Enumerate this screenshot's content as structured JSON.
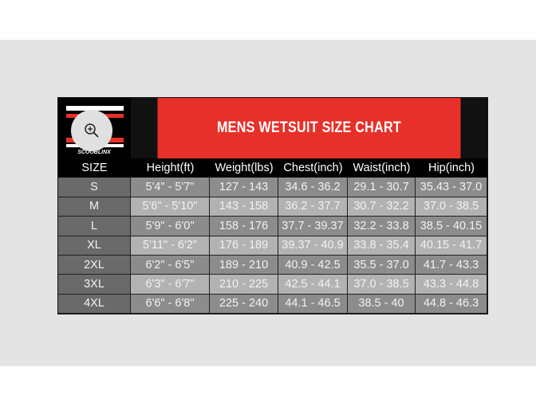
{
  "title": "MENS WETSUIT SIZE CHART",
  "logo_text": "SCOOBLINX",
  "colors": {
    "header_red": "#e8302a",
    "size_col": "#6a6a6a",
    "row_dark": "#8c8c8c",
    "row_light": "#b2b2b2"
  },
  "columns": [
    "SIZE",
    "Height(ft)",
    "Weight(lbs)",
    "Chest(inch)",
    "Waist(inch)",
    "Hip(inch)"
  ],
  "rows": [
    [
      "S",
      "5'4\" - 5'7\"",
      "127 - 143",
      "34.6 - 36.2",
      "29.1 - 30.7",
      "35.43 - 37.0"
    ],
    [
      "M",
      "5'6\" - 5'10\"",
      "143 - 158",
      "36.2 - 37.7",
      "30.7 - 32.2",
      "37.0 - 38.5"
    ],
    [
      "L",
      "5'9\" - 6'0\"",
      "158 - 176",
      "37.7 - 39.37",
      "32.2 - 33.8",
      "38.5 - 40.15"
    ],
    [
      "XL",
      "5'11\" - 6'2\"",
      "176 - 189",
      "39.37 - 40.9",
      "33.8 - 35.4",
      "40.15 - 41.7"
    ],
    [
      "2XL",
      "6'2\" - 6'5\"",
      "189 - 210",
      "40.9 - 42.5",
      "35.5 - 37.0",
      "41.7 - 43.3"
    ],
    [
      "3XL",
      "6'3\" - 6'7\"",
      "210 - 225",
      "42.5 - 44.1",
      "37.0 - 38.5",
      "43.3 - 44.8"
    ],
    [
      "4XL",
      "6'6\" - 6'8\"",
      "225 - 240",
      "44.1 - 46.5",
      "38.5 - 40",
      "44.8 - 46.3"
    ]
  ]
}
